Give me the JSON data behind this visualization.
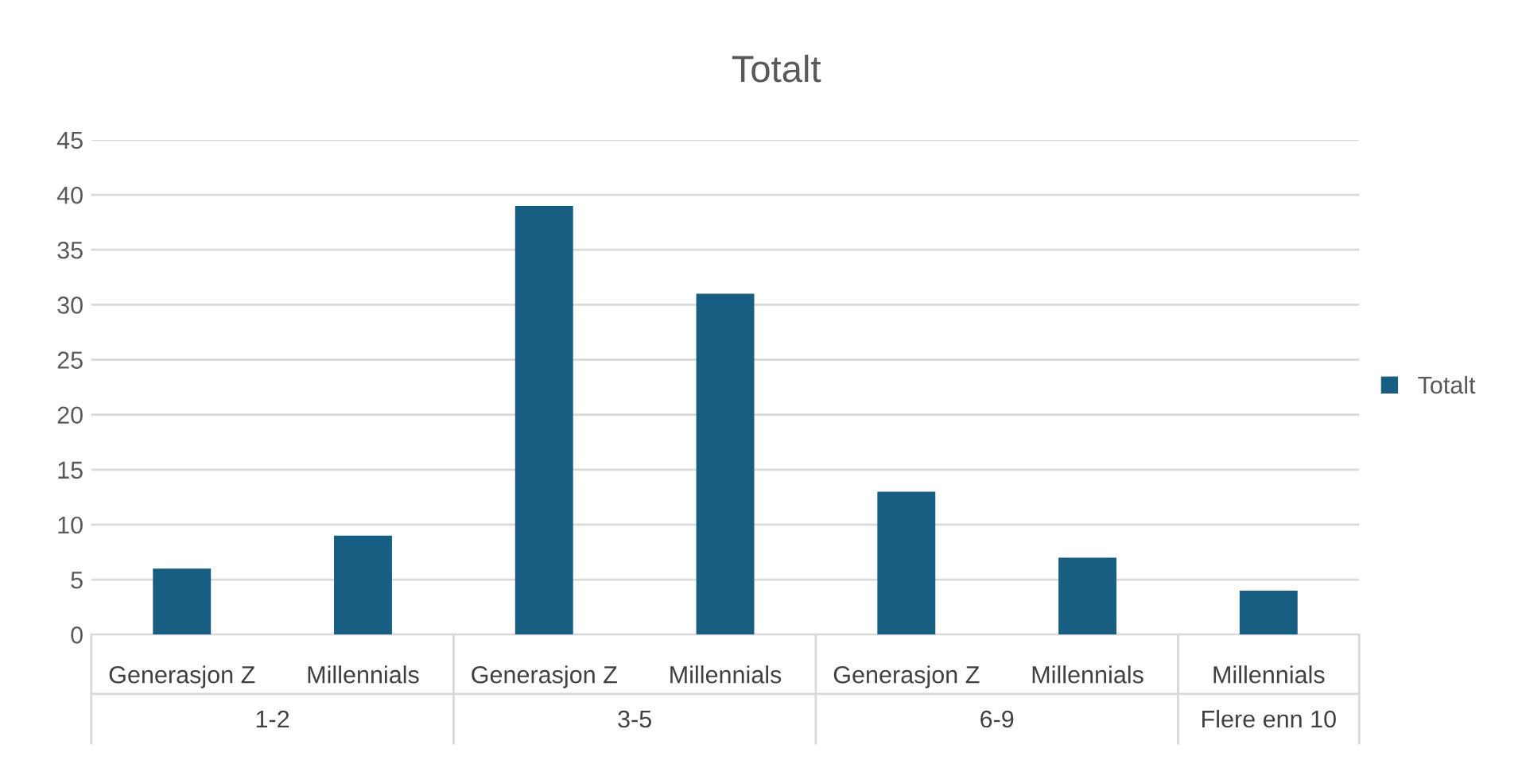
{
  "chart_data": {
    "type": "bar",
    "title": "Totalt",
    "categories": [
      "Generasjon Z",
      "Millennials",
      "Generasjon Z",
      "Millennials",
      "Generasjon Z",
      "Millennials",
      "Millennials"
    ],
    "series": [
      {
        "name": "Totalt",
        "color": "#175e82",
        "values": [
          6,
          9,
          39,
          31,
          13,
          7,
          4
        ]
      }
    ],
    "annotations": [
      "1-2",
      "3-5",
      "6-9",
      "Flere enn 10"
    ],
    "ylim": [
      0,
      45
    ],
    "yticks": [
      0,
      5,
      10,
      15,
      20,
      25,
      30,
      35,
      40,
      45
    ],
    "grid": "y",
    "legend": "right"
  }
}
